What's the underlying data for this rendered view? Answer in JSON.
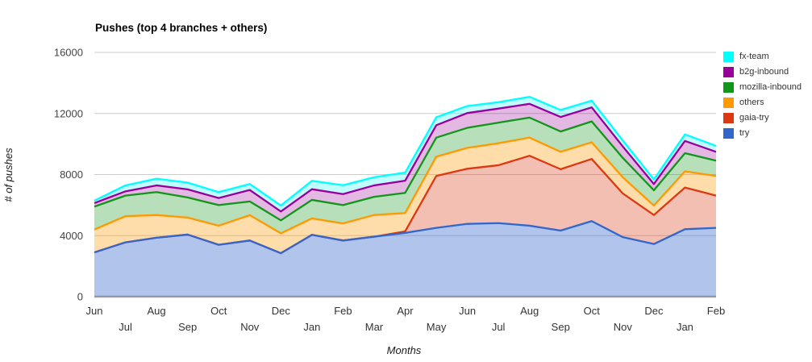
{
  "chart_data": {
    "type": "area",
    "stacked": true,
    "title": "Pushes (top 4 branches + others)",
    "xlabel": "Months",
    "ylabel": "# of pushes",
    "ylim": [
      0,
      16000
    ],
    "yticks": [
      0,
      4000,
      8000,
      12000,
      16000
    ],
    "grid": true,
    "legend_position": "right",
    "x_tick_rows": "alternating",
    "x_labels": [
      "Jun",
      "Jul",
      "Aug",
      "Sep",
      "Oct",
      "Nov",
      "Dec",
      "Jan",
      "Feb",
      "Mar",
      "Apr",
      "May",
      "Jun",
      "Jul",
      "Aug",
      "Sep",
      "Oct",
      "Nov",
      "Dec",
      "Jan",
      "Feb"
    ],
    "series_order": "bottom-to-top; legend shows reverse order",
    "series": [
      {
        "name": "try",
        "color": "#3366CC",
        "fill_opacity": 0.38,
        "values": [
          2900,
          3560,
          3860,
          4070,
          3400,
          3680,
          2850,
          4050,
          3680,
          3930,
          4180,
          4510,
          4770,
          4820,
          4650,
          4330,
          4950,
          3900,
          3450,
          4420,
          4510
        ]
      },
      {
        "name": "gaia-try",
        "color": "#DC3912",
        "fill_opacity": 0.32,
        "values": [
          0,
          0,
          0,
          0,
          0,
          0,
          0,
          0,
          0,
          0,
          100,
          3400,
          3610,
          3790,
          4580,
          4020,
          4070,
          2860,
          1900,
          2730,
          2110
        ]
      },
      {
        "name": "others",
        "color": "#FF9900",
        "fill_opacity": 0.33,
        "values": [
          1500,
          1710,
          1490,
          1110,
          1250,
          1660,
          1300,
          1080,
          1120,
          1420,
          1200,
          1260,
          1370,
          1440,
          1190,
          1140,
          1090,
          1060,
          620,
          1060,
          1290
        ]
      },
      {
        "name": "mozilla-inbound",
        "color": "#109618",
        "fill_opacity": 0.3,
        "values": [
          1500,
          1350,
          1500,
          1320,
          1350,
          900,
          850,
          1210,
          1200,
          1190,
          1320,
          1250,
          1310,
          1350,
          1310,
          1330,
          1370,
          1270,
          1000,
          1190,
          1000
        ]
      },
      {
        "name": "b2g-inbound",
        "color": "#990099",
        "fill_opacity": 0.28,
        "values": [
          230,
          280,
          440,
          530,
          460,
          750,
          580,
          700,
          720,
          750,
          800,
          810,
          970,
          920,
          900,
          950,
          920,
          750,
          410,
          800,
          580
        ]
      },
      {
        "name": "fx-team",
        "color": "#00FFFF",
        "fill_opacity": 0.25,
        "values": [
          160,
          390,
          440,
          440,
          390,
          390,
          390,
          550,
          580,
          530,
          530,
          520,
          460,
          420,
          460,
          460,
          440,
          390,
          300,
          430,
          390
        ]
      }
    ],
    "style": {
      "gridline_color": "#CCCCCC",
      "baseline_color": "#A9A9A9",
      "tick_label_color": "#444444",
      "x_label_color": "#333333"
    }
  }
}
